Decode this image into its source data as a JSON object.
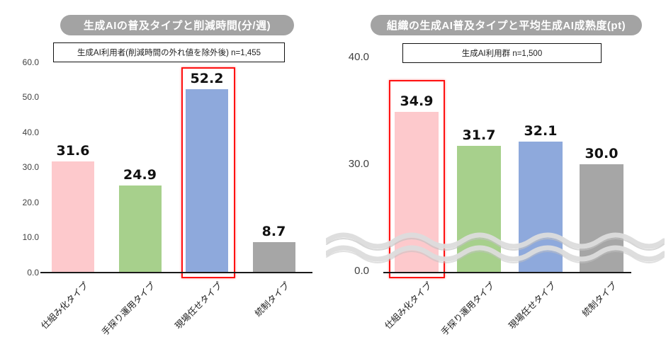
{
  "chart_data": [
    {
      "type": "bar",
      "title": "生成AIの普及タイプと削減時間(分/週)",
      "subtitle": "生成AI利用者(削減時間の外れ値を除外後) n=1,455",
      "categories": [
        "仕組み化タイプ",
        "手探り運用タイプ",
        "現場任せタイプ",
        "統制タイプ"
      ],
      "values": [
        31.6,
        24.9,
        52.2,
        8.7
      ],
      "value_labels": [
        "31.6",
        "24.9",
        "52.2",
        "8.7"
      ],
      "bar_colors": [
        "#fdc9cc",
        "#a7d08c",
        "#8ea9dc",
        "#a6a6a6"
      ],
      "highlighted_index": 2,
      "highlight_color": "#ff1111",
      "yticks": [
        "60.0",
        "50.0",
        "40.0",
        "30.0",
        "20.0",
        "10.0",
        "0.0"
      ],
      "ylim": [
        0,
        60
      ],
      "grid": false,
      "legend_position": "none",
      "axis_break": false
    },
    {
      "type": "bar",
      "title": "組織の生成AI普及タイプと平均生成AI成熟度(pt)",
      "subtitle": "生成AI利用群 n=1,500",
      "categories": [
        "仕組み化タイプ",
        "手探り運用タイプ",
        "現場任せタイプ",
        "統制タイプ"
      ],
      "values": [
        34.9,
        31.7,
        32.1,
        30.0
      ],
      "value_labels": [
        "34.9",
        "31.7",
        "32.1",
        "30.0"
      ],
      "bar_colors": [
        "#fdc9cc",
        "#a7d08c",
        "#8ea9dc",
        "#a6a6a6"
      ],
      "highlighted_index": 0,
      "highlight_color": "#ff1111",
      "yticks": [
        "40.0",
        "30.0",
        "0.0"
      ],
      "ylim": [
        0,
        40
      ],
      "grid": false,
      "legend_position": "none",
      "axis_break": true
    }
  ]
}
